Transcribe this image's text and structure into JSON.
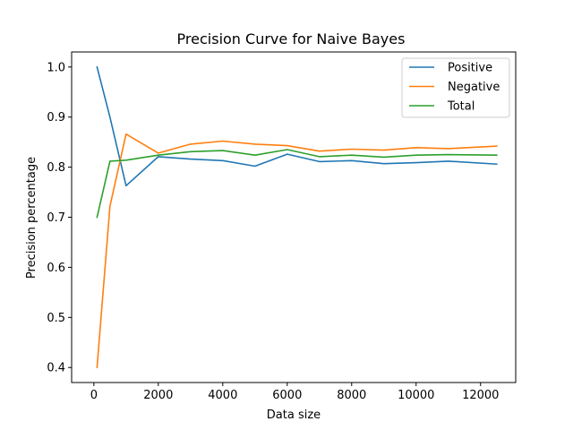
{
  "chart_data": {
    "type": "line",
    "title": "Precision Curve for Naive Bayes",
    "xlabel": "Data size",
    "ylabel": "Precision percentage",
    "xlim": [
      -690,
      13090
    ],
    "ylim": [
      0.37,
      1.03
    ],
    "xticks": [
      0,
      2000,
      4000,
      6000,
      8000,
      10000,
      12000
    ],
    "yticks": [
      0.4,
      0.5,
      0.6,
      0.7,
      0.8,
      0.9,
      1.0
    ],
    "ytick_labels": [
      "0.4",
      "0.5",
      "0.6",
      "0.7",
      "0.8",
      "0.9",
      "1.0"
    ],
    "grid": false,
    "legend_position": "top-right",
    "x": [
      100,
      500,
      1000,
      2000,
      3000,
      4000,
      5000,
      6000,
      7000,
      8000,
      9000,
      10000,
      11000,
      12500
    ],
    "series": [
      {
        "name": "Positive",
        "color": "#1f77b4",
        "values": [
          1.0,
          0.9,
          0.763,
          0.821,
          0.816,
          0.813,
          0.802,
          0.826,
          0.811,
          0.813,
          0.807,
          0.809,
          0.812,
          0.806
        ]
      },
      {
        "name": "Negative",
        "color": "#ff7f0e",
        "values": [
          0.4,
          0.722,
          0.866,
          0.828,
          0.846,
          0.852,
          0.846,
          0.843,
          0.832,
          0.836,
          0.834,
          0.839,
          0.837,
          0.842
        ]
      },
      {
        "name": "Total",
        "color": "#2ca02c",
        "values": [
          0.7,
          0.812,
          0.814,
          0.824,
          0.831,
          0.833,
          0.824,
          0.835,
          0.821,
          0.824,
          0.82,
          0.824,
          0.825,
          0.824
        ]
      }
    ]
  }
}
